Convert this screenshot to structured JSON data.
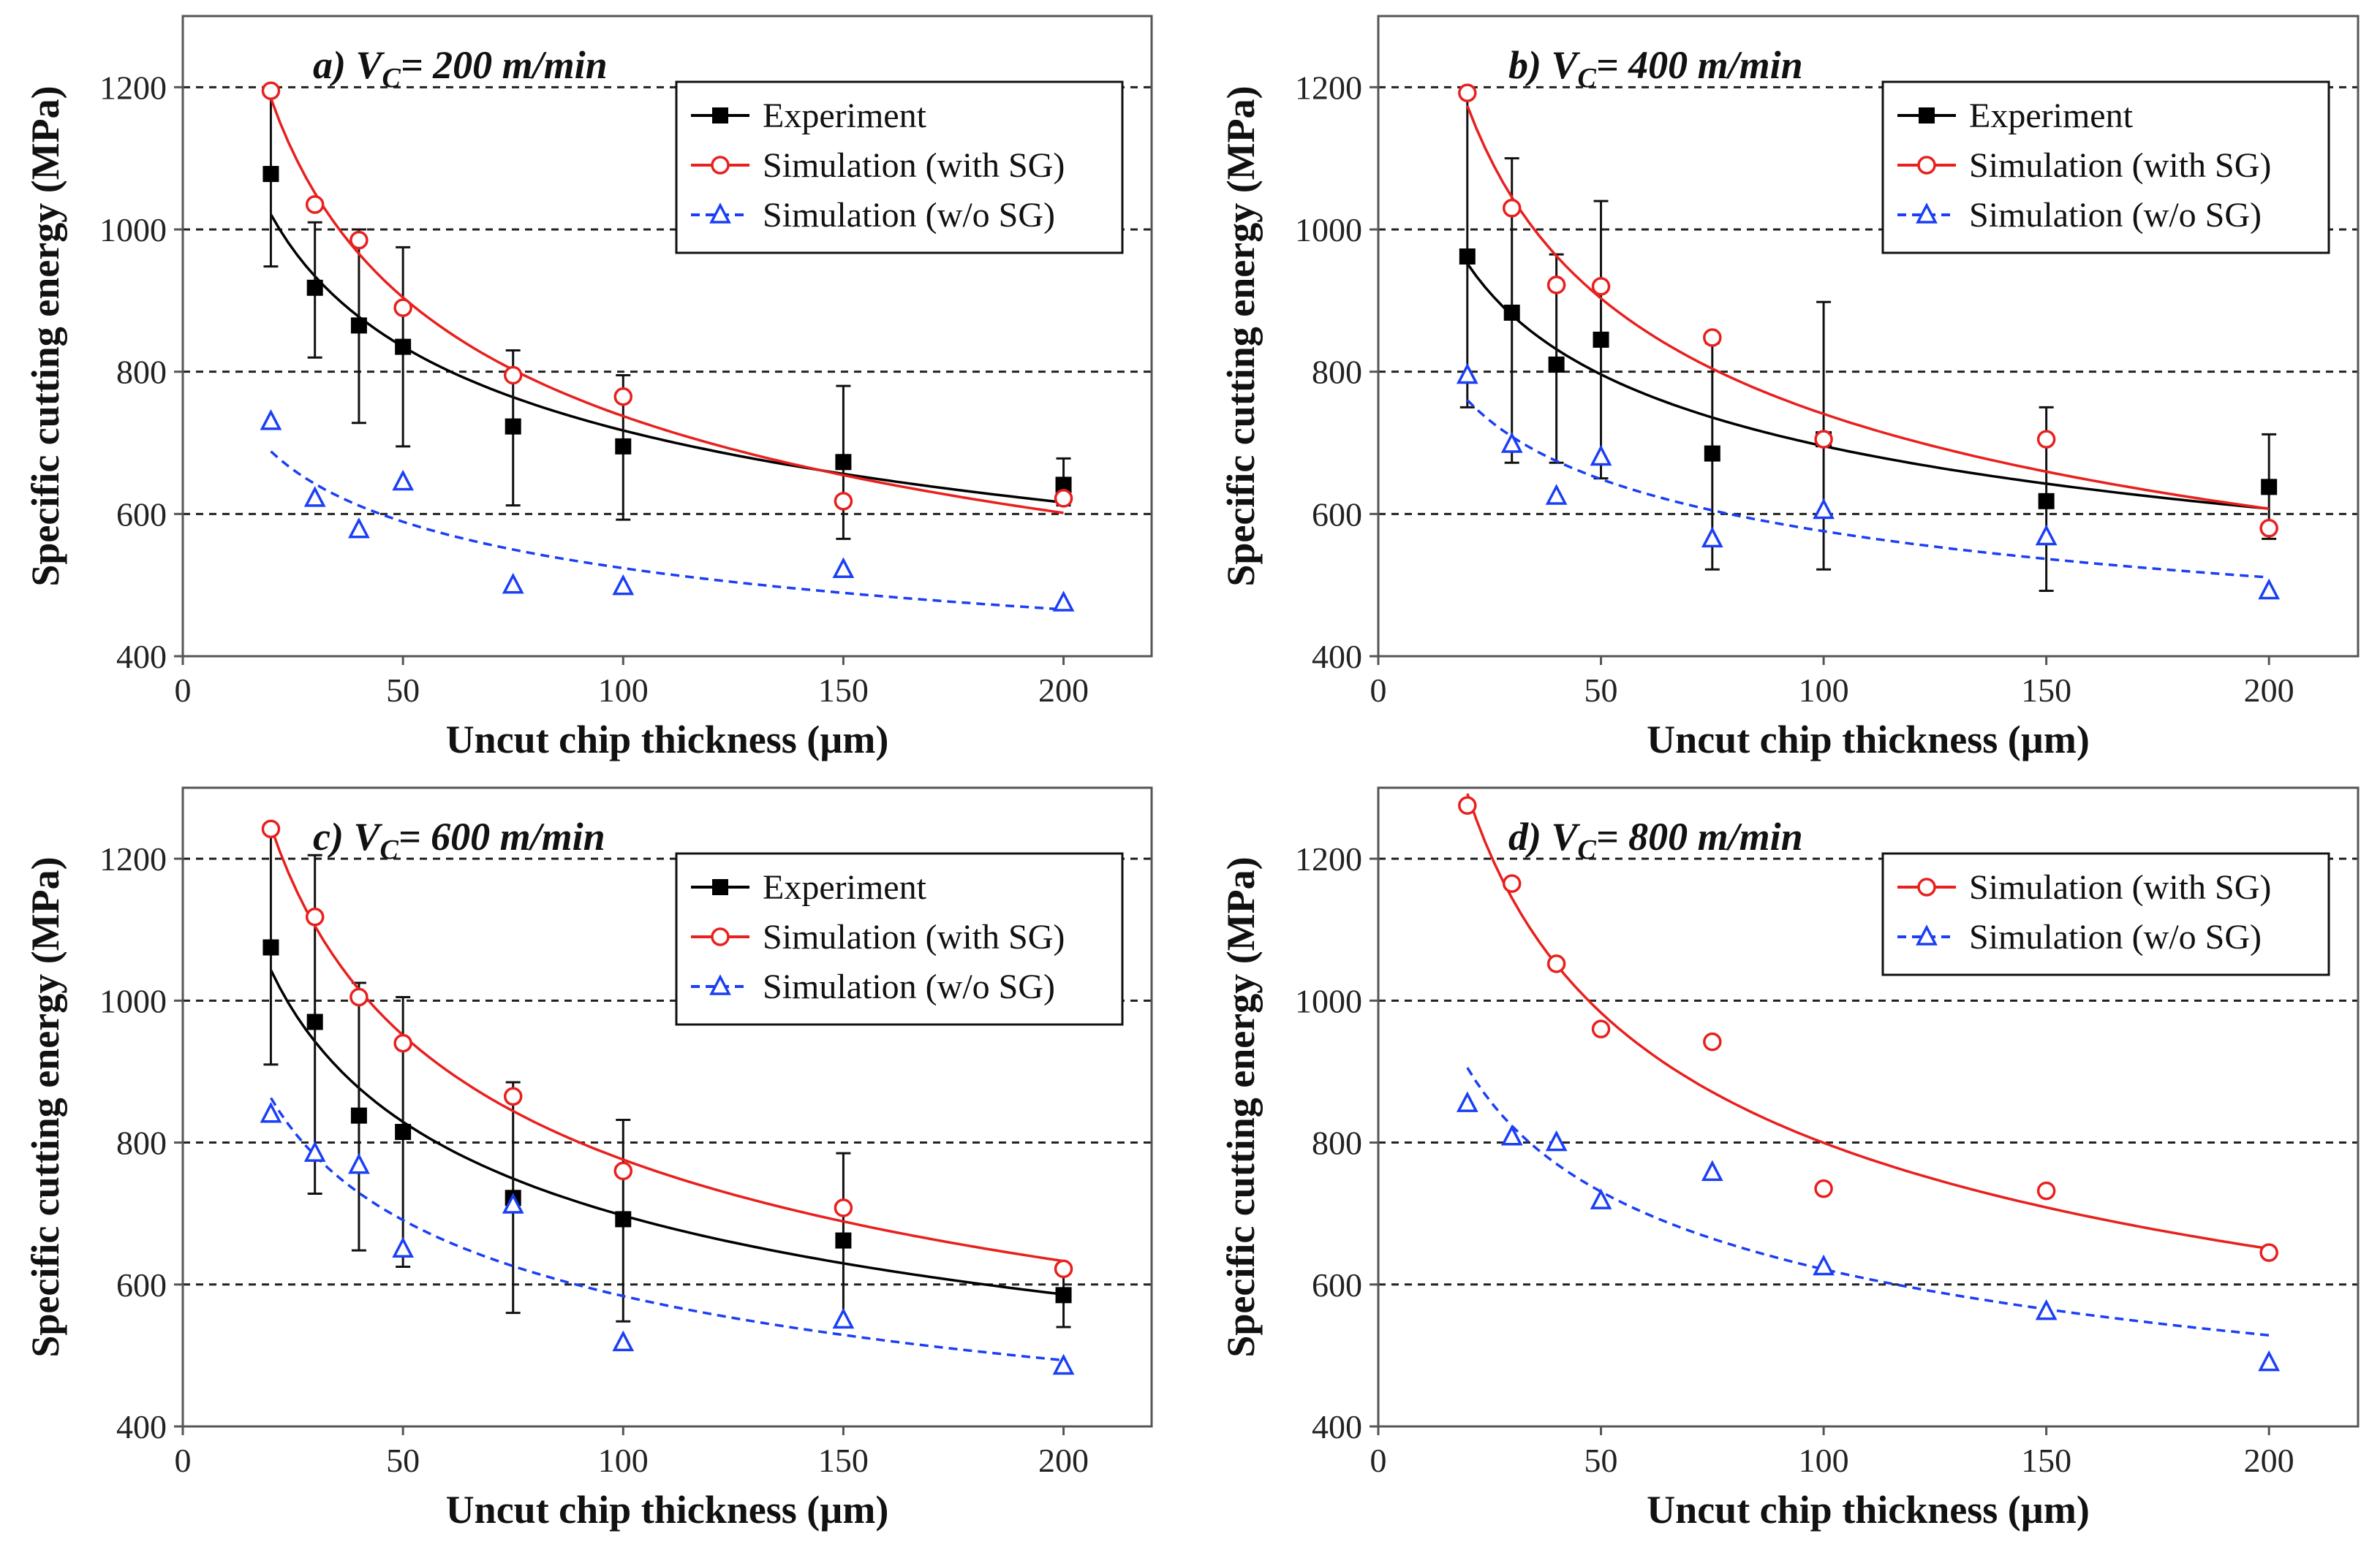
{
  "chart_data": [
    {
      "type": "scatter",
      "panel_label": "a)",
      "title_parts": {
        "v": "V",
        "sub": "C",
        "rest": "= 200 m/min"
      },
      "xlabel": "Uncut chip thickness (µm)",
      "ylabel": "Specific cutting energy (MPa)",
      "xlim": [
        0,
        220
      ],
      "ylim": [
        400,
        1300
      ],
      "xticks": [
        0,
        50,
        100,
        150,
        200
      ],
      "yticks": [
        400,
        600,
        800,
        1000,
        1200
      ],
      "grid": "horizontal dashed",
      "legend_position": "top-right",
      "x": [
        20,
        30,
        40,
        50,
        75,
        100,
        150,
        200
      ],
      "series": [
        {
          "name": "Experiment",
          "color": "#000000",
          "marker": "filled-square",
          "line": "solid",
          "values": [
            1078,
            918,
            865,
            835,
            723,
            695,
            673,
            641
          ],
          "error_low": [
            948,
            820,
            728,
            695,
            612,
            592,
            565,
            612
          ],
          "error_high": [
            1200,
            1010,
            1000,
            975,
            830,
            795,
            780,
            678
          ]
        },
        {
          "name": "Simulation (with SG)",
          "color": "#e8201e",
          "marker": "open-circle",
          "line": "solid",
          "values": [
            1195,
            1035,
            985,
            890,
            795,
            765,
            618,
            622
          ]
        },
        {
          "name": "Simulation (w/o SG)",
          "color": "#1a3ff5",
          "marker": "open-triangle",
          "line": "dashed",
          "values": [
            730,
            622,
            578,
            645,
            500,
            498,
            522,
            475
          ]
        }
      ]
    },
    {
      "type": "scatter",
      "panel_label": "b)",
      "title_parts": {
        "v": "V",
        "sub": "C",
        "rest": "= 400 m/min"
      },
      "xlabel": "Uncut chip thickness (µm)",
      "ylabel": "Specific cutting energy (MPa)",
      "xlim": [
        0,
        220
      ],
      "ylim": [
        400,
        1300
      ],
      "xticks": [
        0,
        50,
        100,
        150,
        200
      ],
      "yticks": [
        400,
        600,
        800,
        1000,
        1200
      ],
      "grid": "horizontal dashed",
      "legend_position": "top-right",
      "x": [
        20,
        30,
        40,
        50,
        75,
        100,
        150,
        200
      ],
      "series": [
        {
          "name": "Experiment",
          "color": "#000000",
          "marker": "filled-square",
          "line": "solid",
          "values": [
            962,
            883,
            810,
            845,
            685,
            705,
            618,
            638
          ],
          "error_low": [
            750,
            672,
            672,
            650,
            522,
            522,
            492,
            565
          ],
          "error_high": [
            1195,
            1100,
            965,
            1040,
            840,
            898,
            750,
            712
          ]
        },
        {
          "name": "Simulation (with SG)",
          "color": "#e8201e",
          "marker": "open-circle",
          "line": "solid",
          "values": [
            1192,
            1030,
            922,
            920,
            848,
            705,
            705,
            580
          ]
        },
        {
          "name": "Simulation (w/o SG)",
          "color": "#1a3ff5",
          "marker": "open-triangle",
          "line": "dashed",
          "values": [
            795,
            698,
            625,
            680,
            565,
            605,
            568,
            492
          ]
        }
      ]
    },
    {
      "type": "scatter",
      "panel_label": "c)",
      "title_parts": {
        "v": "V",
        "sub": "C",
        "rest": "= 600 m/min"
      },
      "xlabel": "Uncut chip thickness (µm)",
      "ylabel": "Specific cutting energy (MPa)",
      "xlim": [
        0,
        220
      ],
      "ylim": [
        400,
        1300
      ],
      "xticks": [
        0,
        50,
        100,
        150,
        200
      ],
      "yticks": [
        400,
        600,
        800,
        1000,
        1200
      ],
      "grid": "horizontal dashed",
      "legend_position": "top-right",
      "x": [
        20,
        30,
        40,
        50,
        75,
        100,
        150,
        200
      ],
      "series": [
        {
          "name": "Experiment",
          "color": "#000000",
          "marker": "filled-square",
          "line": "solid",
          "values": [
            1075,
            970,
            838,
            815,
            722,
            692,
            662,
            585
          ],
          "error_low": [
            910,
            728,
            648,
            625,
            560,
            548,
            540,
            540
          ],
          "error_high": [
            1235,
            1205,
            1025,
            1005,
            885,
            832,
            785,
            622
          ]
        },
        {
          "name": "Simulation (with SG)",
          "color": "#e8201e",
          "marker": "open-circle",
          "line": "solid",
          "values": [
            1242,
            1118,
            1005,
            940,
            865,
            760,
            708,
            622
          ]
        },
        {
          "name": "Simulation (w/o SG)",
          "color": "#1a3ff5",
          "marker": "open-triangle",
          "line": "dashed",
          "values": [
            840,
            785,
            768,
            650,
            712,
            518,
            550,
            485
          ]
        }
      ]
    },
    {
      "type": "scatter",
      "panel_label": "d)",
      "title_parts": {
        "v": "V",
        "sub": "C",
        "rest": "= 800 m/min"
      },
      "xlabel": "Uncut chip thickness (µm)",
      "ylabel": "Specific cutting energy (MPa)",
      "xlim": [
        0,
        220
      ],
      "ylim": [
        400,
        1300
      ],
      "xticks": [
        0,
        50,
        100,
        150,
        200
      ],
      "yticks": [
        400,
        600,
        800,
        1000,
        1200
      ],
      "grid": "horizontal dashed",
      "legend_position": "top-right",
      "x": [
        20,
        30,
        40,
        50,
        75,
        100,
        150,
        200
      ],
      "series": [
        {
          "name": "Simulation (with SG)",
          "color": "#e8201e",
          "marker": "open-circle",
          "line": "solid",
          "values": [
            1275,
            1165,
            1052,
            960,
            942,
            735,
            732,
            645
          ]
        },
        {
          "name": "Simulation (w/o SG)",
          "color": "#1a3ff5",
          "marker": "open-triangle",
          "line": "dashed",
          "values": [
            855,
            808,
            800,
            718,
            758,
            625,
            562,
            490
          ]
        }
      ]
    }
  ]
}
